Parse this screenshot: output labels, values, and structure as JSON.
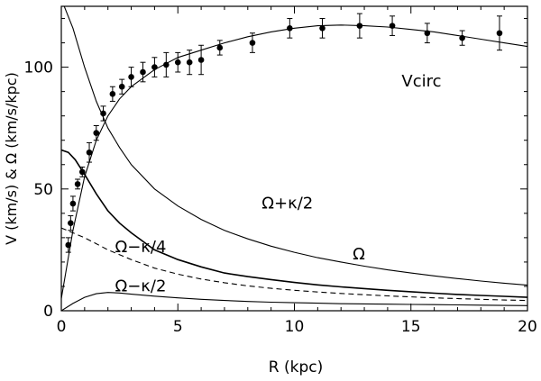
{
  "chart_data": {
    "type": "line",
    "title": "",
    "xlabel": "R (kpc)",
    "ylabel": "V (km/s) & Ω (km/s/kpc)",
    "xlim": [
      0,
      20
    ],
    "ylim": [
      0,
      125
    ],
    "x_ticks": [
      0,
      5,
      10,
      15,
      20
    ],
    "y_ticks": [
      0,
      50,
      100
    ],
    "grid": false,
    "series": [
      {
        "name": "Vcirc (observed)",
        "kind": "points_with_errorbars",
        "points": [
          {
            "x": 0.3,
            "y": 27,
            "err": 3
          },
          {
            "x": 0.4,
            "y": 36,
            "err": 3
          },
          {
            "x": 0.5,
            "y": 44,
            "err": 3
          },
          {
            "x": 0.7,
            "y": 52,
            "err": 2
          },
          {
            "x": 0.9,
            "y": 57,
            "err": 2
          },
          {
            "x": 1.2,
            "y": 65,
            "err": 4
          },
          {
            "x": 1.5,
            "y": 73,
            "err": 3
          },
          {
            "x": 1.8,
            "y": 81,
            "err": 3
          },
          {
            "x": 2.2,
            "y": 89,
            "err": 3
          },
          {
            "x": 2.6,
            "y": 92,
            "err": 3
          },
          {
            "x": 3.0,
            "y": 96,
            "err": 4
          },
          {
            "x": 3.5,
            "y": 98,
            "err": 4
          },
          {
            "x": 4.0,
            "y": 100,
            "err": 4
          },
          {
            "x": 4.5,
            "y": 101,
            "err": 5
          },
          {
            "x": 5.0,
            "y": 102,
            "err": 4
          },
          {
            "x": 5.5,
            "y": 102,
            "err": 5
          },
          {
            "x": 6.0,
            "y": 103,
            "err": 6
          },
          {
            "x": 6.8,
            "y": 108,
            "err": 3
          },
          {
            "x": 8.2,
            "y": 110,
            "err": 4
          },
          {
            "x": 9.8,
            "y": 116,
            "err": 4
          },
          {
            "x": 11.2,
            "y": 116,
            "err": 4
          },
          {
            "x": 12.8,
            "y": 117,
            "err": 5
          },
          {
            "x": 14.2,
            "y": 117,
            "err": 4
          },
          {
            "x": 15.7,
            "y": 114,
            "err": 4
          },
          {
            "x": 17.2,
            "y": 112,
            "err": 3
          },
          {
            "x": 18.8,
            "y": 114,
            "err": 7
          }
        ]
      },
      {
        "name": "Vcirc",
        "style": "solid",
        "x": [
          0,
          0.5,
          1,
          1.5,
          2,
          2.5,
          3,
          4,
          5,
          6,
          7,
          8,
          9,
          10,
          11,
          12,
          13,
          14,
          15,
          16,
          17,
          18,
          19,
          20
        ],
        "y": [
          5,
          33,
          55,
          70,
          80,
          87,
          92,
          99,
          104,
          107,
          110,
          112.5,
          114.5,
          116,
          117,
          117.3,
          117,
          116.5,
          115.5,
          114.5,
          113,
          111.5,
          110,
          108.5
        ]
      },
      {
        "name": "Ω+κ/2",
        "style": "solid",
        "x": [
          0,
          0.5,
          1,
          1.5,
          2,
          2.5,
          3,
          4,
          5,
          6,
          7,
          8,
          9,
          10,
          11,
          12,
          13,
          14,
          15,
          16,
          17,
          18,
          19,
          20
        ],
        "y": [
          128,
          116,
          100,
          86,
          75,
          67,
          60,
          50,
          43,
          37.5,
          33,
          29.5,
          26.5,
          24,
          21.8,
          20,
          18.3,
          16.8,
          15.5,
          14.3,
          13.2,
          12.2,
          11.3,
          10.5
        ]
      },
      {
        "name": "Ω",
        "style": "solid",
        "x": [
          0,
          0.3,
          0.6,
          1,
          1.5,
          2,
          2.5,
          3,
          4,
          5,
          6,
          7,
          8,
          9,
          10,
          11,
          12,
          13,
          14,
          15,
          16,
          17,
          18,
          19,
          20
        ],
        "y": [
          66,
          65,
          62,
          56,
          48,
          41,
          36,
          32,
          25,
          21,
          18,
          15.5,
          14,
          12.8,
          11.6,
          10.6,
          9.8,
          9.1,
          8.4,
          7.8,
          7.2,
          6.7,
          6.3,
          5.9,
          5.5
        ]
      },
      {
        "name": "Ω−κ/4",
        "style": "dashed",
        "x": [
          0,
          0.5,
          1,
          1.5,
          2,
          3,
          4,
          5,
          6,
          7,
          8,
          9,
          10,
          11,
          12,
          13,
          14,
          15,
          16,
          17,
          18,
          19,
          20
        ],
        "y": [
          34,
          32,
          30,
          27.5,
          25,
          21,
          17.5,
          15,
          13,
          11.5,
          10.2,
          9.2,
          8.4,
          7.7,
          7.1,
          6.6,
          6.1,
          5.7,
          5.3,
          5,
          4.7,
          4.4,
          4.2
        ]
      },
      {
        "name": "Ω−κ/2",
        "style": "solid",
        "x": [
          0,
          0.5,
          1,
          1.5,
          2,
          2.5,
          3,
          4,
          5,
          6,
          7,
          8,
          9,
          10,
          11,
          12,
          13,
          14,
          15,
          16,
          17,
          18,
          19,
          20
        ],
        "y": [
          0,
          3,
          5.5,
          7,
          7.5,
          7.3,
          6.8,
          6,
          5.3,
          4.7,
          4.2,
          3.8,
          3.5,
          3.3,
          3.1,
          2.9,
          2.8,
          2.7,
          2.6,
          2.5,
          2.4,
          2.3,
          2.2,
          2.1
        ]
      }
    ],
    "annotations": [
      {
        "text": "Vcirc",
        "x": 14.6,
        "y": 92
      },
      {
        "text": "Ω+κ/2",
        "x": 8.6,
        "y": 42
      },
      {
        "text": "Ω−κ/4",
        "x": 2.3,
        "y": 24
      },
      {
        "text": "Ω",
        "x": 12.5,
        "y": 21
      },
      {
        "text": "Ω−κ/2",
        "x": 2.3,
        "y": 8
      }
    ]
  }
}
